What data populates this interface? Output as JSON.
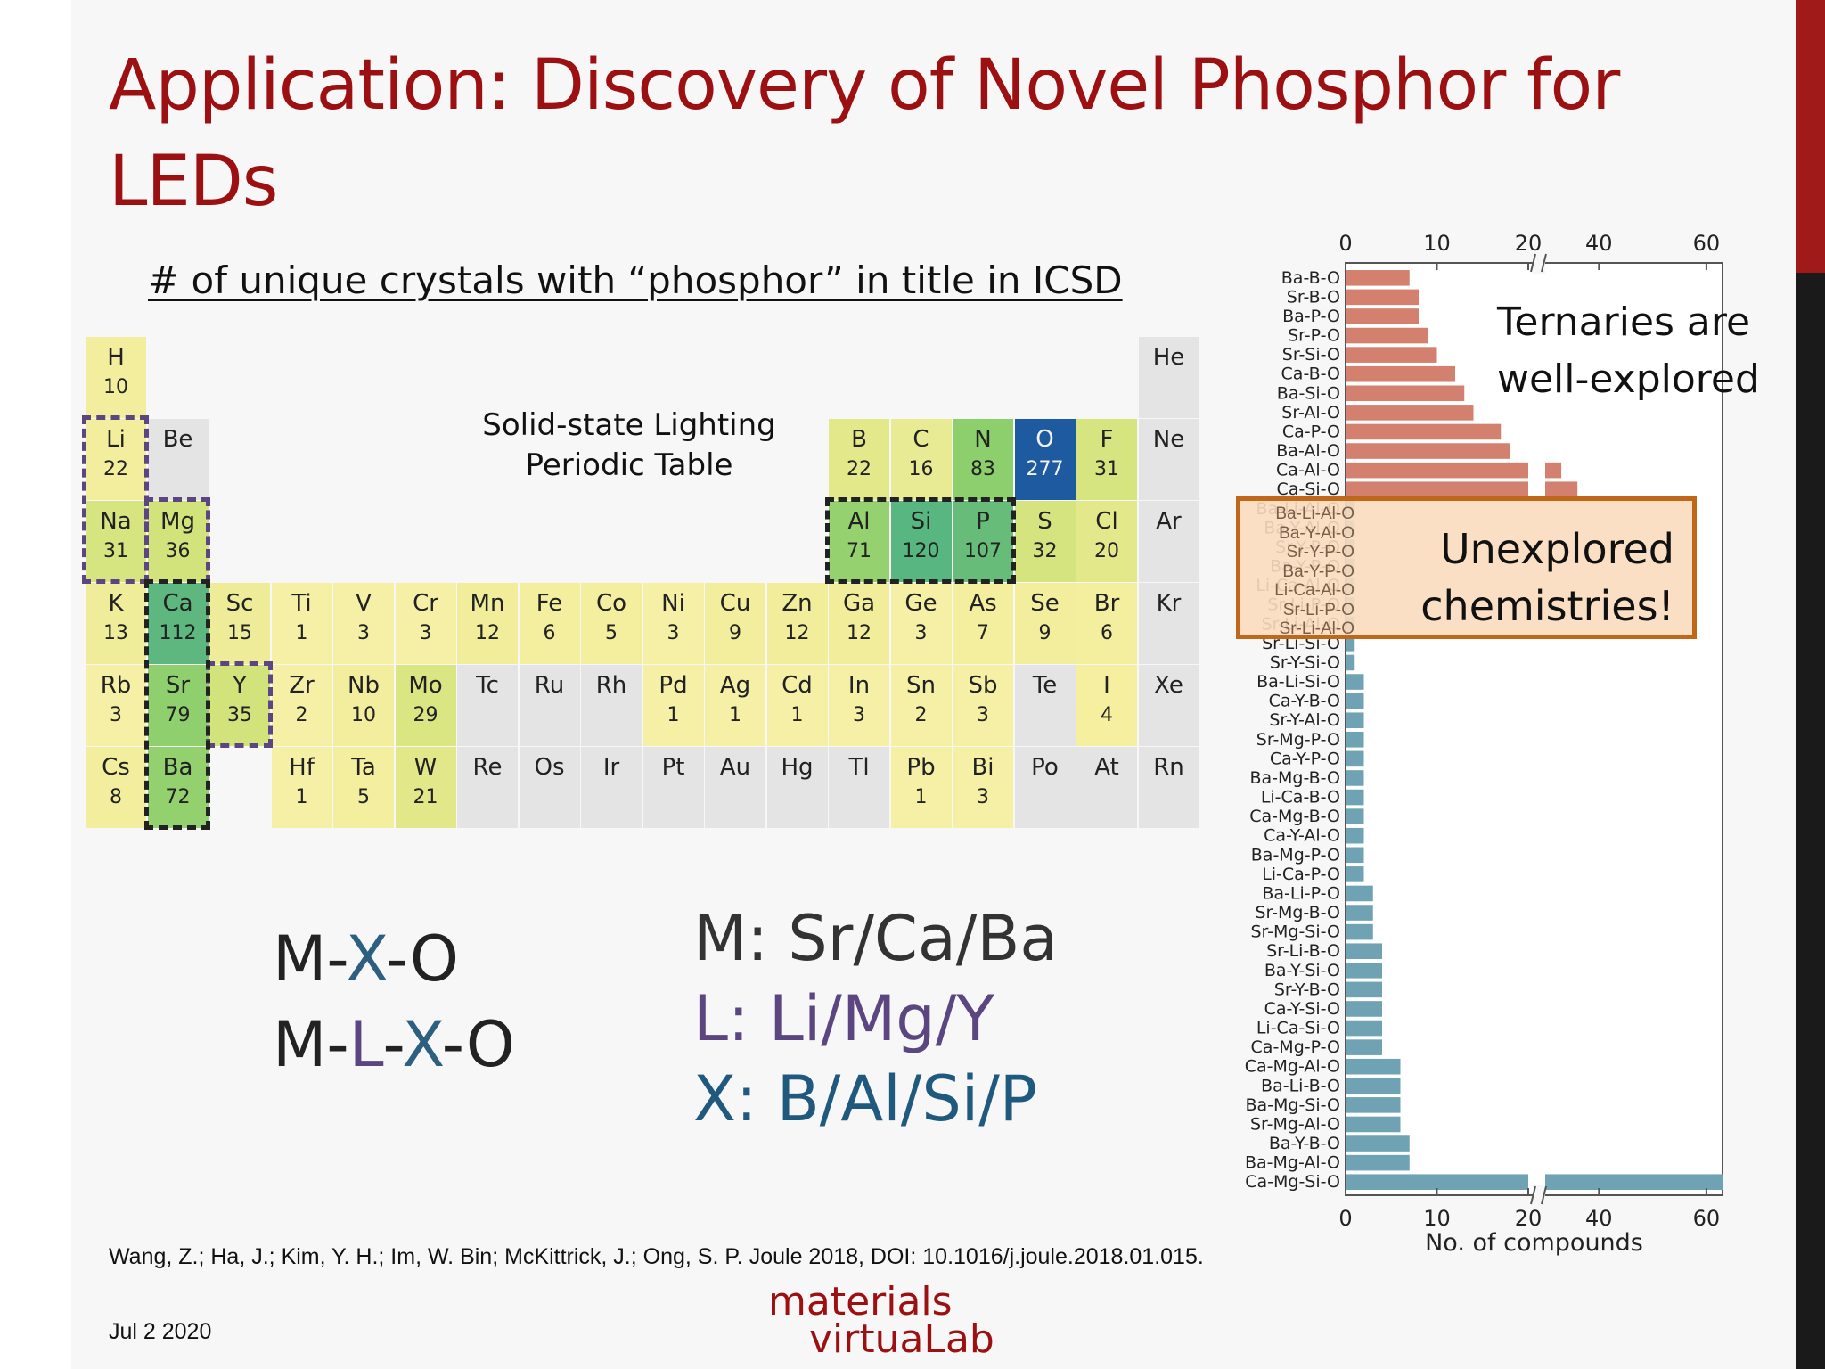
{
  "title": "Application: Discovery of Novel Phosphor for LEDs",
  "table_heading": "# of unique crystals with “phosphor” in title in ICSD",
  "periodic_table": {
    "title_line1": "Solid-state Lighting",
    "title_line2": "Periodic Table",
    "elements": [
      {
        "sym": "H",
        "count": "10",
        "color": "#f3ee9d"
      },
      {
        "sym": "He",
        "count": "",
        "color": "#e4e4e4"
      },
      {
        "sym": "Li",
        "count": "22",
        "color": "#f3ee9d"
      },
      {
        "sym": "Be",
        "count": "",
        "color": "#e4e4e4"
      },
      {
        "sym": "B",
        "count": "22",
        "color": "#e3e88a"
      },
      {
        "sym": "C",
        "count": "16",
        "color": "#e8eb93"
      },
      {
        "sym": "N",
        "count": "83",
        "color": "#8ccf6c"
      },
      {
        "sym": "O",
        "count": "277",
        "color": "#1e5aa0"
      },
      {
        "sym": "F",
        "count": "31",
        "color": "#d7e580"
      },
      {
        "sym": "Ne",
        "count": "",
        "color": "#e4e4e4"
      },
      {
        "sym": "Na",
        "count": "31",
        "color": "#d7e580"
      },
      {
        "sym": "Mg",
        "count": "36",
        "color": "#d2e37c"
      },
      {
        "sym": "Al",
        "count": "71",
        "color": "#96d16f"
      },
      {
        "sym": "Si",
        "count": "120",
        "color": "#58b680"
      },
      {
        "sym": "P",
        "count": "107",
        "color": "#67bc7a"
      },
      {
        "sym": "S",
        "count": "32",
        "color": "#d5e47f"
      },
      {
        "sym": "Cl",
        "count": "20",
        "color": "#e3e88a"
      },
      {
        "sym": "Ar",
        "count": "",
        "color": "#e4e4e4"
      },
      {
        "sym": "K",
        "count": "13",
        "color": "#f0ed9a"
      },
      {
        "sym": "Ca",
        "count": "112",
        "color": "#5db77e"
      },
      {
        "sym": "Sc",
        "count": "15",
        "color": "#eeec98"
      },
      {
        "sym": "Ti",
        "count": "1",
        "color": "#f6f0a6"
      },
      {
        "sym": "V",
        "count": "3",
        "color": "#f6f0a6"
      },
      {
        "sym": "Cr",
        "count": "3",
        "color": "#f6f0a6"
      },
      {
        "sym": "Mn",
        "count": "12",
        "color": "#f1ed9a"
      },
      {
        "sym": "Fe",
        "count": "6",
        "color": "#f4ee9f"
      },
      {
        "sym": "Co",
        "count": "5",
        "color": "#f4ee9f"
      },
      {
        "sym": "Ni",
        "count": "3",
        "color": "#f6f0a6"
      },
      {
        "sym": "Cu",
        "count": "9",
        "color": "#f3ee9d"
      },
      {
        "sym": "Zn",
        "count": "12",
        "color": "#f1ed9a"
      },
      {
        "sym": "Ga",
        "count": "12",
        "color": "#f1ed9a"
      },
      {
        "sym": "Ge",
        "count": "3",
        "color": "#f6f0a6"
      },
      {
        "sym": "As",
        "count": "7",
        "color": "#f4ee9f"
      },
      {
        "sym": "Se",
        "count": "9",
        "color": "#f3ee9d"
      },
      {
        "sym": "Br",
        "count": "6",
        "color": "#f4ee9f"
      },
      {
        "sym": "Kr",
        "count": "",
        "color": "#e4e4e4"
      },
      {
        "sym": "Rb",
        "count": "3",
        "color": "#f6f0a6"
      },
      {
        "sym": "Sr",
        "count": "79",
        "color": "#8fcf6d"
      },
      {
        "sym": "Y",
        "count": "35",
        "color": "#d2e37c"
      },
      {
        "sym": "Zr",
        "count": "2",
        "color": "#f6f0a6"
      },
      {
        "sym": "Nb",
        "count": "10",
        "color": "#f3ee9d"
      },
      {
        "sym": "Mo",
        "count": "29",
        "color": "#dae681"
      },
      {
        "sym": "Tc",
        "count": "",
        "color": "#e4e4e4"
      },
      {
        "sym": "Ru",
        "count": "",
        "color": "#e4e4e4"
      },
      {
        "sym": "Rh",
        "count": "",
        "color": "#e4e4e4"
      },
      {
        "sym": "Pd",
        "count": "1",
        "color": "#f6f0a6"
      },
      {
        "sym": "Ag",
        "count": "1",
        "color": "#f6f0a6"
      },
      {
        "sym": "Cd",
        "count": "1",
        "color": "#f6f0a6"
      },
      {
        "sym": "In",
        "count": "3",
        "color": "#f6f0a6"
      },
      {
        "sym": "Sn",
        "count": "2",
        "color": "#f6f0a6"
      },
      {
        "sym": "Sb",
        "count": "3",
        "color": "#f6f0a6"
      },
      {
        "sym": "Te",
        "count": "",
        "color": "#e4e4e4"
      },
      {
        "sym": "I",
        "count": "4",
        "color": "#f5ef9f"
      },
      {
        "sym": "Xe",
        "count": "",
        "color": "#e4e4e4"
      },
      {
        "sym": "Cs",
        "count": "8",
        "color": "#f3ee9d"
      },
      {
        "sym": "Ba",
        "count": "72",
        "color": "#93d06e"
      },
      {
        "sym": "Hf",
        "count": "1",
        "color": "#f6f0a6"
      },
      {
        "sym": "Ta",
        "count": "5",
        "color": "#f4ee9f"
      },
      {
        "sym": "W",
        "count": "21",
        "color": "#e2e889"
      },
      {
        "sym": "Re",
        "count": "",
        "color": "#e4e4e4"
      },
      {
        "sym": "Os",
        "count": "",
        "color": "#e4e4e4"
      },
      {
        "sym": "Ir",
        "count": "",
        "color": "#e4e4e4"
      },
      {
        "sym": "Pt",
        "count": "",
        "color": "#e4e4e4"
      },
      {
        "sym": "Au",
        "count": "",
        "color": "#e4e4e4"
      },
      {
        "sym": "Hg",
        "count": "",
        "color": "#e4e4e4"
      },
      {
        "sym": "Tl",
        "count": "",
        "color": "#e4e4e4"
      },
      {
        "sym": "Pb",
        "count": "1",
        "color": "#f6f0a6"
      },
      {
        "sym": "Bi",
        "count": "3",
        "color": "#f6f0a6"
      },
      {
        "sym": "Po",
        "count": "",
        "color": "#e4e4e4"
      },
      {
        "sym": "At",
        "count": "",
        "color": "#e4e4e4"
      },
      {
        "sym": "Rn",
        "count": "",
        "color": "#e4e4e4"
      }
    ]
  },
  "formula": {
    "line1": [
      {
        "t": "M-",
        "c": "#222222"
      },
      {
        "t": "X",
        "c": "#2c5f80"
      },
      {
        "t": "-O",
        "c": "#222222"
      }
    ],
    "line2": [
      {
        "t": "M-",
        "c": "#222222"
      },
      {
        "t": "L",
        "c": "#5b4681"
      },
      {
        "t": "-",
        "c": "#222222"
      },
      {
        "t": "X",
        "c": "#2c5f80"
      },
      {
        "t": "-O",
        "c": "#222222"
      }
    ]
  },
  "legend": {
    "m": {
      "text": "M: Sr/Ca/Ba",
      "color": "#333333"
    },
    "l": {
      "text": "L: Li/Mg/Y",
      "color": "#5b4681"
    },
    "x": {
      "text": "X: B/Al/Si/P",
      "color": "#1f5a7e"
    }
  },
  "citation": "Wang, Z.; Ha, J.; Kim, Y. H.; Im, W. Bin; McKittrick, J.; Ong, S. P. Joule 2018, DOI: 10.1016/j.joule.2018.01.015.",
  "date": "Jul 2 2020",
  "logo": {
    "line1": "materials",
    "line2": "virtuaLab"
  },
  "chart_data": {
    "type": "bar",
    "orientation": "horizontal",
    "xlabel": "No. of compounds",
    "x_ticks": [
      "0",
      "10",
      "20",
      "40",
      "60"
    ],
    "axis_break": [
      20,
      30
    ],
    "xlim": [
      0,
      63
    ],
    "series": [
      {
        "color": "#d3806e",
        "categories": [
          "Ba-B-O",
          "Sr-B-O",
          "Ba-P-O",
          "Sr-P-O",
          "Sr-Si-O",
          "Ca-B-O",
          "Ba-Si-O",
          "Sr-Al-O",
          "Ca-P-O",
          "Ba-Al-O",
          "Ca-Al-O",
          "Ca-Si-O"
        ],
        "values": [
          7,
          8,
          8,
          9,
          10,
          12,
          13,
          14,
          17,
          18,
          33,
          36
        ]
      },
      {
        "color": "#6fa3b3",
        "categories": [
          "Ba-Li-Al-O",
          "Ba-Y-Al-O",
          "Sr-Y-P-O",
          "Ba-Y-P-O",
          "Li-Ca-Al-O",
          "Sr-Li-P-O",
          "Sr-Li-Al-O",
          "Sr-Li-Si-O",
          "Sr-Y-Si-O",
          "Ba-Li-Si-O",
          "Ca-Y-B-O",
          "Sr-Y-Al-O",
          "Sr-Mg-P-O",
          "Ca-Y-P-O",
          "Ba-Mg-B-O",
          "Li-Ca-B-O",
          "Ca-Mg-B-O",
          "Ca-Y-Al-O",
          "Ba-Mg-P-O",
          "Li-Ca-P-O",
          "Ba-Li-P-O",
          "Sr-Mg-B-O",
          "Sr-Mg-Si-O",
          "Sr-Li-B-O",
          "Ba-Y-Si-O",
          "Sr-Y-B-O",
          "Ca-Y-Si-O",
          "Li-Ca-Si-O",
          "Ca-Mg-P-O",
          "Ca-Mg-Al-O",
          "Ba-Li-B-O",
          "Ba-Mg-Si-O",
          "Sr-Mg-Al-O",
          "Ba-Y-B-O",
          "Ba-Mg-Al-O",
          "Ca-Mg-Si-O"
        ],
        "values": [
          1,
          1,
          1,
          1,
          1,
          1,
          1,
          1,
          1,
          2,
          2,
          2,
          2,
          2,
          2,
          2,
          2,
          2,
          2,
          2,
          3,
          3,
          3,
          4,
          4,
          4,
          4,
          4,
          4,
          6,
          6,
          6,
          6,
          7,
          7,
          63
        ]
      }
    ],
    "annotation_ternary": [
      "Ternaries are",
      "well-explored"
    ],
    "annotation_unexplored": [
      "Unexplored",
      "chemistries!"
    ]
  }
}
